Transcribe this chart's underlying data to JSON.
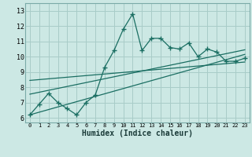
{
  "xlabel": "Humidex (Indice chaleur)",
  "xlim": [
    -0.5,
    23.5
  ],
  "ylim": [
    5.7,
    13.5
  ],
  "xticks": [
    0,
    1,
    2,
    3,
    4,
    5,
    6,
    7,
    8,
    9,
    10,
    11,
    12,
    13,
    14,
    15,
    16,
    17,
    18,
    19,
    20,
    21,
    22,
    23
  ],
  "yticks": [
    6,
    7,
    8,
    9,
    10,
    11,
    12,
    13
  ],
  "bg_color": "#cce8e4",
  "grid_color": "#a8ccc8",
  "line_color": "#1a6e62",
  "data_line_x": [
    0,
    1,
    2,
    3,
    4,
    5,
    6,
    7,
    8,
    9,
    10,
    11,
    12,
    13,
    14,
    15,
    16,
    17,
    18,
    19,
    20,
    21,
    22,
    23
  ],
  "data_line_y": [
    6.2,
    6.9,
    7.6,
    7.0,
    6.6,
    6.2,
    7.0,
    7.5,
    9.3,
    10.4,
    11.8,
    12.8,
    10.4,
    11.2,
    11.2,
    10.6,
    10.5,
    10.9,
    10.0,
    10.5,
    10.3,
    9.7,
    9.7,
    9.9
  ],
  "reg_lines": [
    {
      "x": [
        0,
        23
      ],
      "y": [
        6.2,
        10.15
      ]
    },
    {
      "x": [
        0,
        23
      ],
      "y": [
        7.55,
        10.45
      ]
    },
    {
      "x": [
        0,
        23
      ],
      "y": [
        8.45,
        9.65
      ]
    }
  ]
}
